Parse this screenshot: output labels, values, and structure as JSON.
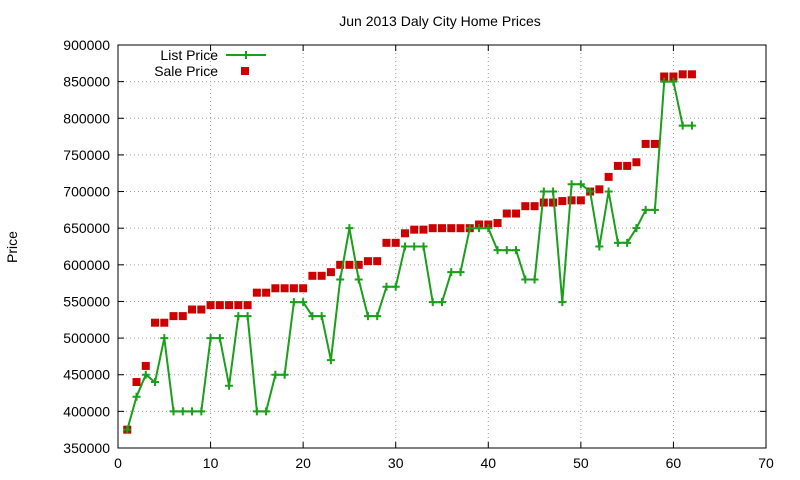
{
  "chart_data": {
    "type": "line",
    "title": "Jun 2013 Daly City Home Prices",
    "xlabel": "",
    "ylabel": "Price",
    "xlim": [
      0,
      70
    ],
    "ylim": [
      350000,
      900000
    ],
    "xticks": [
      "0",
      "10",
      "20",
      "30",
      "40",
      "50",
      "60",
      "70"
    ],
    "yticks": [
      "350000",
      "400000",
      "450000",
      "500000",
      "550000",
      "600000",
      "650000",
      "700000",
      "750000",
      "800000",
      "850000",
      "900000"
    ],
    "grid": true,
    "legend_position": "top-left",
    "series": [
      {
        "name": "List Price",
        "style": "line+cross",
        "color": "#1a9f1a",
        "x": [
          1,
          2,
          3,
          4,
          5,
          6,
          7,
          8,
          9,
          10,
          11,
          12,
          13,
          14,
          15,
          16,
          17,
          18,
          19,
          20,
          21,
          22,
          23,
          24,
          25,
          26,
          27,
          28,
          29,
          30,
          31,
          32,
          33,
          34,
          35,
          36,
          37,
          38,
          39,
          40,
          41,
          42,
          43,
          44,
          45,
          46,
          47,
          48,
          49,
          50,
          51,
          52,
          53,
          54,
          55,
          56,
          57,
          58,
          59,
          60,
          61,
          62
        ],
        "y": [
          375000,
          420000,
          450000,
          440000,
          500000,
          400000,
          400000,
          400000,
          400000,
          500000,
          500000,
          435000,
          530000,
          530000,
          400000,
          400000,
          450000,
          450000,
          549000,
          549000,
          530000,
          530000,
          470000,
          580000,
          650000,
          580000,
          530000,
          530000,
          570000,
          570000,
          625000,
          625000,
          625000,
          549000,
          549000,
          590000,
          590000,
          650000,
          650000,
          650000,
          620000,
          620000,
          620000,
          580000,
          580000,
          700000,
          700000,
          549000,
          710000,
          710000,
          700000,
          625000,
          700000,
          630000,
          630000,
          650000,
          675000,
          675000,
          850000,
          850000,
          790000,
          790000
        ]
      },
      {
        "name": "Sale Price",
        "style": "square-markers",
        "color": "#cc0000",
        "x": [
          1,
          2,
          3,
          4,
          5,
          6,
          7,
          8,
          9,
          10,
          11,
          12,
          13,
          14,
          15,
          16,
          17,
          18,
          19,
          20,
          21,
          22,
          23,
          24,
          25,
          26,
          27,
          28,
          29,
          30,
          31,
          32,
          33,
          34,
          35,
          36,
          37,
          38,
          39,
          40,
          41,
          42,
          43,
          44,
          45,
          46,
          47,
          48,
          49,
          50,
          51,
          52,
          53,
          54,
          55,
          56,
          57,
          58,
          59,
          60,
          61,
          62
        ],
        "y": [
          375000,
          440000,
          462000,
          521000,
          521000,
          530000,
          530000,
          539000,
          539000,
          545000,
          545000,
          545000,
          545000,
          545000,
          562000,
          562000,
          568000,
          568000,
          568000,
          568000,
          585000,
          585000,
          590000,
          600000,
          600000,
          600000,
          605000,
          605000,
          630000,
          630000,
          643000,
          648000,
          648000,
          650000,
          650000,
          650000,
          650000,
          650000,
          655000,
          655000,
          657000,
          670000,
          670000,
          680000,
          680000,
          685000,
          685000,
          687000,
          688000,
          688000,
          700000,
          703000,
          720000,
          735000,
          735000,
          740000,
          765000,
          765000,
          857000,
          857000,
          860000,
          860000
        ]
      }
    ]
  }
}
